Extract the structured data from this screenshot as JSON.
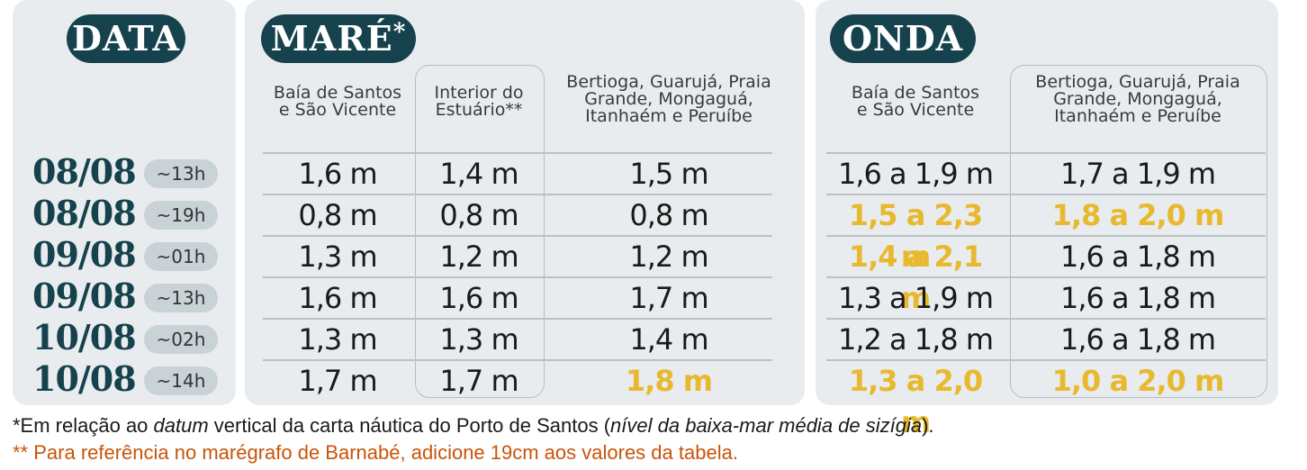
{
  "headers": {
    "data": "DATA",
    "mare": "MARÉ",
    "mare_mark": "*",
    "onda": "ONDA"
  },
  "mare_columns": [
    "Baía de Santos\ne São Vicente",
    "Interior do\nEstuário**",
    "Bertioga, Guarujá, Praia\nGrande, Mongaguá,\nItanhaém e Peruíbe"
  ],
  "onda_columns": [
    "Baía de Santos\ne São Vicente",
    "Bertioga, Guarujá, Praia\nGrande, Mongaguá,\nItanhaém e Peruíbe"
  ],
  "rows": [
    {
      "date": "08/08",
      "time": "~13h",
      "mare": [
        "1,6 m",
        "1,4 m",
        "1,5 m"
      ],
      "onda": [
        "1,6 a 1,9 m",
        "1,7 a 1,9 m"
      ]
    },
    {
      "date": "08/08",
      "time": "~19h",
      "mare": [
        "0,8 m",
        "0,8 m",
        "0,8 m"
      ],
      "onda": [
        "1,5 a 2,3 m",
        "1,8 a 2,0 m"
      ]
    },
    {
      "date": "09/08",
      "time": "~01h",
      "mare": [
        "1,3 m",
        "1,2 m",
        "1,2 m"
      ],
      "onda": [
        "1,4 a 2,1 m",
        "1,6 a 1,8 m"
      ]
    },
    {
      "date": "09/08",
      "time": "~13h",
      "mare": [
        "1,6 m",
        "1,6 m",
        "1,7 m"
      ],
      "onda": [
        "1,3 a 1,9 m",
        "1,6 a 1,8 m"
      ]
    },
    {
      "date": "10/08",
      "time": "~02h",
      "mare": [
        "1,3 m",
        "1,3 m",
        "1,4 m"
      ],
      "onda": [
        "1,2 a 1,8 m",
        "1,6 a 1,8 m"
      ]
    },
    {
      "date": "10/08",
      "time": "~14h",
      "mare": [
        "1,7 m",
        "1,7 m",
        "1,8 m"
      ],
      "onda": [
        "1,3 a 2,0 m",
        "1,0 a 2,0 m"
      ]
    }
  ],
  "highlight_color": "#e8b92e",
  "notes": {
    "footnote1_a": "*Em relação ao ",
    "footnote1_b": "datum",
    "footnote1_c": " vertical da carta náutica do Porto de Santos (",
    "footnote1_d": "nível da baixa-mar média de sizígia",
    "footnote1_e": ").",
    "footnote2": "** Para referência no marégrafo de Barnabé, adicione 19cm aos valores da tabela."
  }
}
